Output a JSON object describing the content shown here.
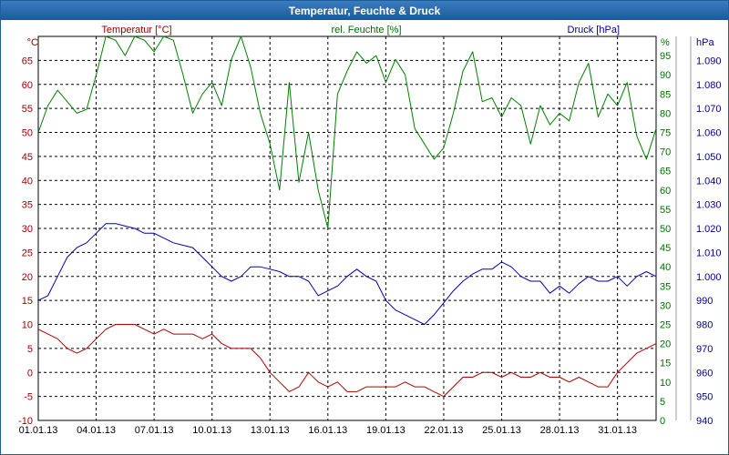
{
  "window": {
    "title": "Temperatur, Feuchte & Druck"
  },
  "chart_data": {
    "type": "line",
    "title": "Temperatur, Feuchte & Druck",
    "grid": true,
    "x_ticks": [
      "01.01.13",
      "04.01.13",
      "07.01.13",
      "10.01.13",
      "13.01.13",
      "16.01.13",
      "19.01.13",
      "22.01.13",
      "25.01.13",
      "28.01.13",
      "31.01.13"
    ],
    "x_range": [
      0,
      32
    ],
    "axes": {
      "temperature": {
        "label": "Temperatur [°C]",
        "unit": "°C",
        "range": [
          -10,
          70
        ],
        "ticks": [
          "-10",
          "-5",
          "0",
          "5",
          "10",
          "15",
          "20",
          "25",
          "30",
          "35",
          "40",
          "45",
          "50",
          "55",
          "60",
          "65"
        ],
        "color": "#a00000"
      },
      "humidity": {
        "label": "rel. Feuchte [%]",
        "unit": "%",
        "range": [
          0,
          100
        ],
        "ticks": [
          "0",
          "5",
          "10",
          "15",
          "20",
          "25",
          "30",
          "35",
          "40",
          "45",
          "50",
          "55",
          "60",
          "65",
          "70",
          "75",
          "80",
          "85",
          "90",
          "95"
        ],
        "color": "#007000"
      },
      "pressure": {
        "label": "Druck [hPa]",
        "unit": "hPa",
        "range": [
          940,
          1100
        ],
        "ticks": [
          "940",
          "950",
          "960",
          "970",
          "980",
          "990",
          "1.000",
          "1.010",
          "1.020",
          "1.030",
          "1.040",
          "1.050",
          "1.060",
          "1.070",
          "1.080",
          "1.090"
        ],
        "color": "#000090"
      }
    },
    "series": [
      {
        "name": "Temperatur [°C]",
        "axis": "temperature",
        "color": "#b00000",
        "x": [
          0,
          0.5,
          1,
          1.5,
          2,
          2.5,
          3,
          3.5,
          4,
          4.5,
          5,
          5.5,
          6,
          6.5,
          7,
          7.5,
          8,
          8.5,
          9,
          9.5,
          10,
          10.5,
          11,
          11.5,
          12,
          12.5,
          13,
          13.5,
          14,
          14.5,
          15,
          15.5,
          16,
          16.5,
          17,
          17.5,
          18,
          18.5,
          19,
          19.5,
          20,
          20.5,
          21,
          21.5,
          22,
          22.5,
          23,
          23.5,
          24,
          24.5,
          25,
          25.5,
          26,
          26.5,
          27,
          27.5,
          28,
          28.5,
          29,
          29.5,
          30,
          30.5,
          31,
          31.5,
          32
        ],
        "y": [
          9,
          8,
          7,
          5,
          4,
          5,
          7,
          9,
          10,
          10,
          10,
          9,
          8,
          9,
          8,
          8,
          8,
          7,
          8,
          6,
          5,
          5,
          5,
          3,
          0,
          -2,
          -4,
          -3,
          0,
          -2,
          -3,
          -2,
          -4,
          -4,
          -3,
          -3,
          -3,
          -3,
          -2,
          -3,
          -3,
          -4,
          -5,
          -3,
          -1,
          -1,
          0,
          0,
          -1,
          0,
          -1,
          -1,
          0,
          -1,
          -1,
          -2,
          -1,
          -2,
          -3,
          -3,
          0,
          2,
          4,
          5,
          6
        ]
      },
      {
        "name": "rel. Feuchte [%]",
        "axis": "humidity",
        "color": "#008000",
        "x": [
          0,
          0.5,
          1,
          1.5,
          2,
          2.5,
          3,
          3.5,
          4,
          4.5,
          5,
          5.5,
          6,
          6.5,
          7,
          7.5,
          8,
          8.5,
          9,
          9.5,
          10,
          10.5,
          11,
          11.5,
          12,
          12.5,
          13,
          13.5,
          14,
          14.5,
          15,
          15.5,
          16,
          16.5,
          17,
          17.5,
          18,
          18.5,
          19,
          19.5,
          20,
          20.5,
          21,
          21.5,
          22,
          22.5,
          23,
          23.5,
          24,
          24.5,
          25,
          25.5,
          26,
          26.5,
          27,
          27.5,
          28,
          28.5,
          29,
          29.5,
          30,
          30.5,
          31,
          31.5,
          32
        ],
        "y": [
          75,
          82,
          86,
          83,
          80,
          81,
          90,
          100,
          99,
          95,
          100,
          99,
          96,
          100,
          99,
          90,
          80,
          85,
          88,
          82,
          94,
          100,
          92,
          80,
          72,
          60,
          88,
          62,
          75,
          60,
          50,
          85,
          91,
          96,
          93,
          95,
          88,
          94,
          90,
          76,
          72,
          68,
          71,
          80,
          91,
          96,
          83,
          84,
          79,
          84,
          82,
          72,
          82,
          77,
          80,
          78,
          88,
          93,
          79,
          85,
          82,
          88,
          74,
          68,
          76
        ]
      },
      {
        "name": "Druck [hPa]",
        "axis": "pressure",
        "color": "#0000b0",
        "x": [
          0,
          0.5,
          1,
          1.5,
          2,
          2.5,
          3,
          3.5,
          4,
          4.5,
          5,
          5.5,
          6,
          6.5,
          7,
          7.5,
          8,
          8.5,
          9,
          9.5,
          10,
          10.5,
          11,
          11.5,
          12,
          12.5,
          13,
          13.5,
          14,
          14.5,
          15,
          15.5,
          16,
          16.5,
          17,
          17.5,
          18,
          18.5,
          19,
          19.5,
          20,
          20.5,
          21,
          21.5,
          22,
          22.5,
          23,
          23.5,
          24,
          24.5,
          25,
          25.5,
          26,
          26.5,
          27,
          27.5,
          28,
          28.5,
          29,
          29.5,
          30,
          30.5,
          31,
          31.5,
          32
        ],
        "y": [
          990,
          992,
          1000,
          1008,
          1012,
          1014,
          1018,
          1022,
          1022,
          1021,
          1020,
          1018,
          1018,
          1016,
          1014,
          1013,
          1012,
          1008,
          1004,
          1000,
          998,
          1000,
          1004,
          1004,
          1003,
          1002,
          1000,
          1000,
          998,
          992,
          994,
          996,
          1000,
          1003,
          1000,
          998,
          990,
          986,
          984,
          982,
          980,
          984,
          989,
          994,
          998,
          1001,
          1003,
          1003,
          1006,
          1004,
          1000,
          998,
          998,
          993,
          996,
          993,
          997,
          1000,
          998,
          998,
          1000,
          996,
          1000,
          1002,
          1000
        ]
      }
    ]
  }
}
